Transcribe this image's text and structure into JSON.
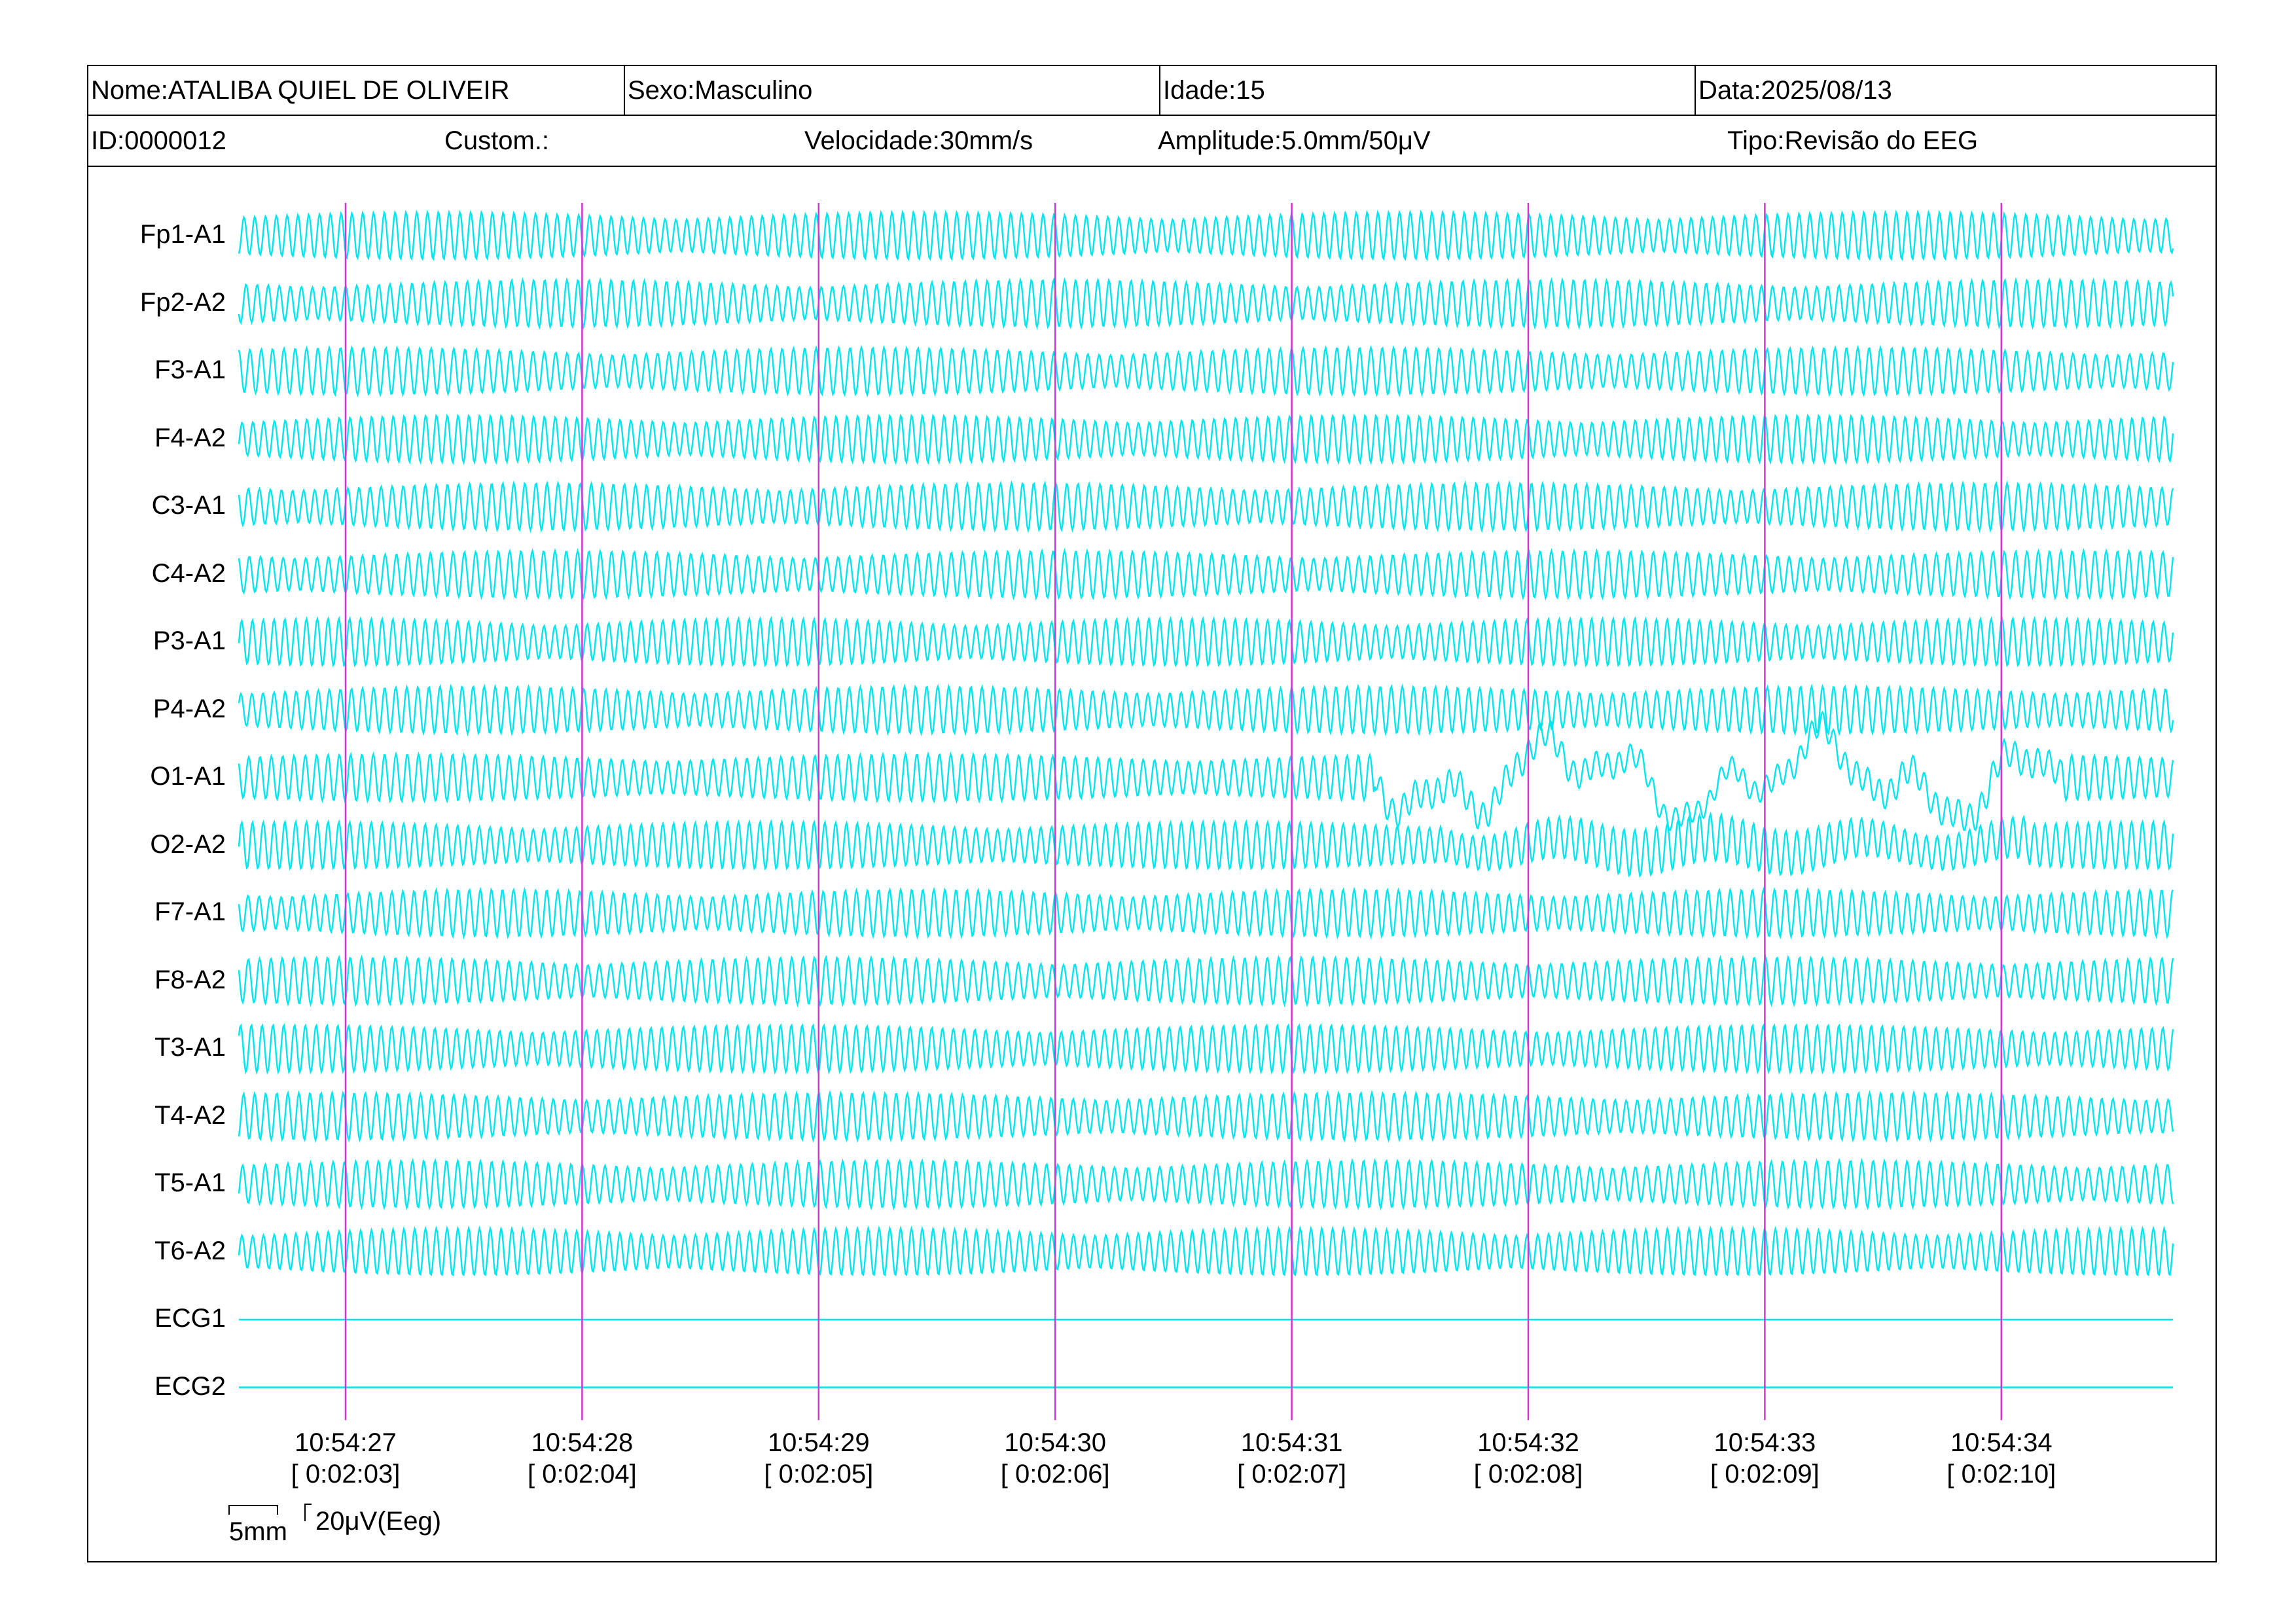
{
  "header": {
    "nome": "Nome:ATALIBA QUIEL DE OLIVEIR",
    "sexo": "Sexo:Masculino",
    "idade": "Idade:15",
    "data": "Data:2025/08/13",
    "id": "ID:0000012",
    "custom": "Custom.:",
    "velocidade": "Velocidade:30mm/s",
    "amplitude": "Amplitude:5.0mm/50μV",
    "tipo": "Tipo:Revisão do EEG"
  },
  "channels": [
    "Fp1-A1",
    "Fp2-A2",
    "F3-A1",
    "F4-A2",
    "C3-A1",
    "C4-A2",
    "P3-A1",
    "P4-A2",
    "O1-A1",
    "O2-A2",
    "F7-A1",
    "F8-A2",
    "T3-A1",
    "T4-A2",
    "T5-A1",
    "T6-A2",
    "ECG1",
    "ECG2"
  ],
  "flat_channels": [
    "ECG1",
    "ECG2"
  ],
  "artifact_channels": [
    "O1-A1"
  ],
  "time_marks": [
    {
      "clock": "10:54:27",
      "elapsed": "[ 0:02:03]"
    },
    {
      "clock": "10:54:28",
      "elapsed": "[ 0:02:04]"
    },
    {
      "clock": "10:54:29",
      "elapsed": "[ 0:02:05]"
    },
    {
      "clock": "10:54:30",
      "elapsed": "[ 0:02:06]"
    },
    {
      "clock": "10:54:31",
      "elapsed": "[ 0:02:07]"
    },
    {
      "clock": "10:54:32",
      "elapsed": "[ 0:02:08]"
    },
    {
      "clock": "10:54:33",
      "elapsed": "[ 0:02:09]"
    },
    {
      "clock": "10:54:34",
      "elapsed": "[ 0:02:10]"
    }
  ],
  "scale_bar": {
    "time_label": "5mm",
    "amp_label": "20μV(Eeg)"
  },
  "colors": {
    "trace": "#00e5ee",
    "second_marker": "#d633d6",
    "frame": "#000000"
  }
}
